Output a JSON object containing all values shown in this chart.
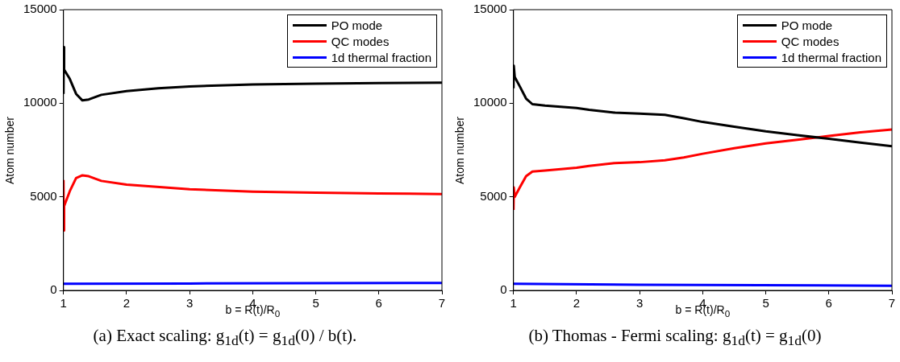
{
  "chart_data": [
    {
      "type": "line",
      "xlabel": "b = R(t)/R$_{0}$",
      "ylabel": "Atom number",
      "xlim": [
        1,
        7
      ],
      "ylim": [
        0,
        15000
      ],
      "xticks": [
        1,
        2,
        3,
        4,
        5,
        6,
        7
      ],
      "yticks": [
        0,
        5000,
        10000,
        15000
      ],
      "grid": false,
      "legend": "top right",
      "annotations": [
        "(a) Exact scaling: g$_{1d}$(t) = g$_{1d}$(0) / b(t)."
      ],
      "series": [
        {
          "name": "PO mode",
          "color": "#000000",
          "x": [
            1,
            1.005,
            1.01,
            1.1,
            1.2,
            1.3,
            1.4,
            1.6,
            2,
            2.5,
            3,
            4,
            5,
            6,
            7
          ],
          "values": [
            10500,
            13000,
            11800,
            11300,
            10500,
            10150,
            10200,
            10450,
            10650,
            10800,
            10900,
            11000,
            11050,
            11080,
            11100
          ]
        },
        {
          "name": "QC modes",
          "color": "#ff0000",
          "x": [
            1,
            1.005,
            1.01,
            1.1,
            1.2,
            1.3,
            1.4,
            1.6,
            2,
            3,
            4,
            5,
            6,
            7
          ],
          "values": [
            5900,
            3200,
            4500,
            5300,
            6000,
            6150,
            6100,
            5850,
            5650,
            5400,
            5280,
            5220,
            5180,
            5150
          ]
        },
        {
          "name": "1d thermal fraction",
          "color": "#0000ff",
          "x": [
            1,
            3,
            7
          ],
          "values": [
            350,
            370,
            400
          ]
        }
      ]
    },
    {
      "type": "line",
      "xlabel": "b = R(t)/R$_{0}$",
      "ylabel": "Atom number",
      "xlim": [
        1,
        7
      ],
      "ylim": [
        0,
        15000
      ],
      "xticks": [
        1,
        2,
        3,
        4,
        5,
        6,
        7
      ],
      "yticks": [
        0,
        5000,
        10000,
        15000
      ],
      "grid": false,
      "legend": "top right",
      "annotations": [
        "(b) Thomas - Fermi scaling: g$_{1d}$(t) = g$_{1d}$(0)"
      ],
      "series": [
        {
          "name": "PO mode",
          "color": "#000000",
          "x": [
            1,
            1.005,
            1.02,
            1.1,
            1.2,
            1.3,
            1.5,
            2,
            2.2,
            2.6,
            3,
            3.4,
            3.7,
            4,
            4.5,
            5,
            5.5,
            6,
            6.5,
            7
          ],
          "values": [
            10800,
            12000,
            11400,
            10900,
            10250,
            9950,
            9870,
            9750,
            9650,
            9500,
            9450,
            9380,
            9200,
            9000,
            8750,
            8500,
            8300,
            8100,
            7900,
            7700
          ]
        },
        {
          "name": "QC modes",
          "color": "#ff0000",
          "x": [
            1,
            1.005,
            1.02,
            1.1,
            1.2,
            1.3,
            1.5,
            2,
            2.2,
            2.6,
            3,
            3.4,
            3.7,
            4,
            4.5,
            5,
            5.5,
            6,
            6.5,
            7
          ],
          "values": [
            4300,
            5500,
            5000,
            5500,
            6100,
            6350,
            6400,
            6550,
            6650,
            6800,
            6850,
            6950,
            7100,
            7300,
            7600,
            7850,
            8050,
            8250,
            8450,
            8600
          ]
        },
        {
          "name": "1d thermal fraction",
          "color": "#0000ff",
          "x": [
            1,
            3,
            7
          ],
          "values": [
            350,
            300,
            250
          ]
        }
      ]
    }
  ]
}
